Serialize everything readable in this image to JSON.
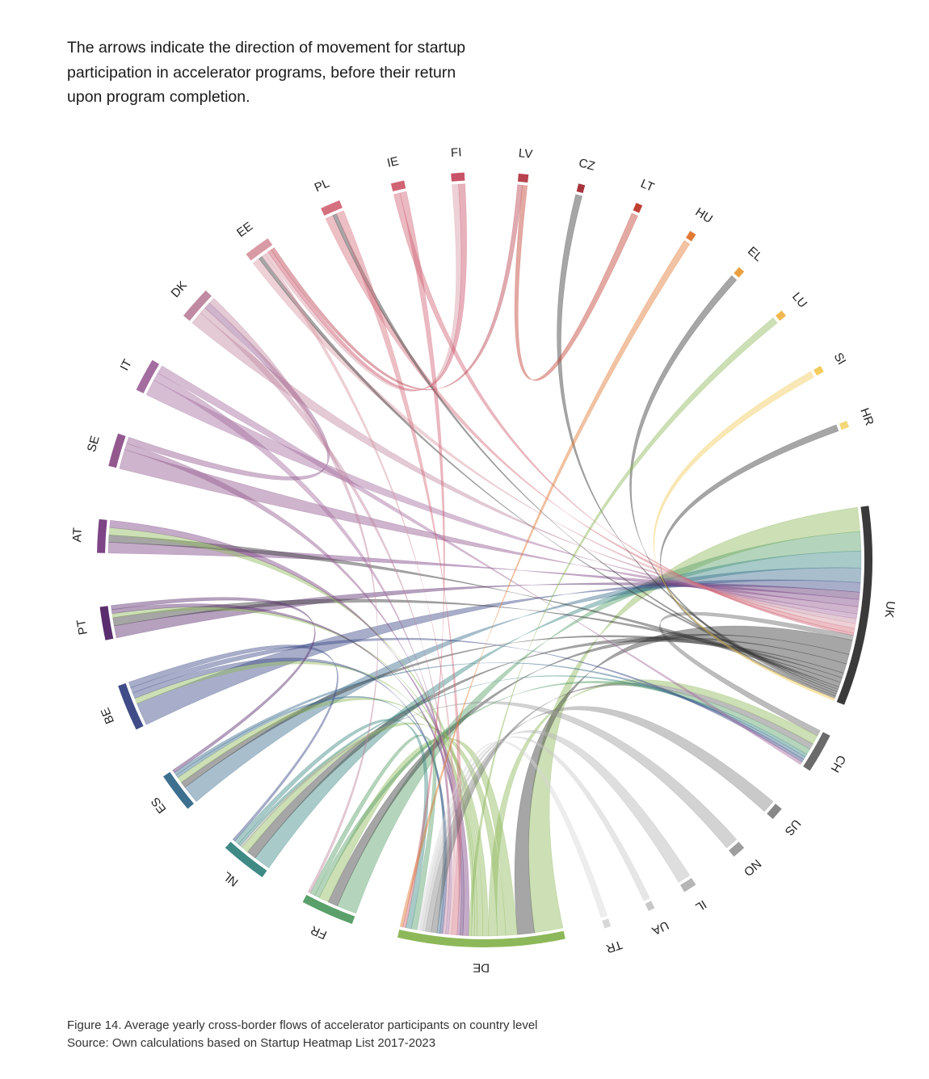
{
  "intro_text": "The arrows indicate the direction of movement for startup participation in accelerator programs, before their return upon program completion.",
  "caption": {
    "figure": "Figure 14. Average yearly cross-border flows of accelerator participants on country level",
    "source": "Source: Own calculations based on Startup Heatmap List 2017-2023"
  },
  "chart_data": {
    "type": "chord",
    "countries": [
      {
        "code": "UK",
        "color": "#3a3a3a"
      },
      {
        "code": "CH",
        "color": "#6b6b6b"
      },
      {
        "code": "US",
        "color": "#888888"
      },
      {
        "code": "NO",
        "color": "#9e9e9e"
      },
      {
        "code": "IL",
        "color": "#b5b5b5"
      },
      {
        "code": "UA",
        "color": "#c8c8c8"
      },
      {
        "code": "TR",
        "color": "#d8d8d8"
      },
      {
        "code": "DE",
        "color": "#8db85a"
      },
      {
        "code": "FR",
        "color": "#5aa06a"
      },
      {
        "code": "NL",
        "color": "#3f8a85"
      },
      {
        "code": "ES",
        "color": "#3d6f8e"
      },
      {
        "code": "BE",
        "color": "#3f4c87"
      },
      {
        "code": "PT",
        "color": "#5a2e6e"
      },
      {
        "code": "AT",
        "color": "#7d4486"
      },
      {
        "code": "SE",
        "color": "#93598f"
      },
      {
        "code": "IT",
        "color": "#a36d9f"
      },
      {
        "code": "DK",
        "color": "#c08aa2"
      },
      {
        "code": "EE",
        "color": "#d89aa4"
      },
      {
        "code": "PL",
        "color": "#d5707f"
      },
      {
        "code": "IE",
        "color": "#d06475"
      },
      {
        "code": "FI",
        "color": "#c95368"
      },
      {
        "code": "LV",
        "color": "#b8424f"
      },
      {
        "code": "CZ",
        "color": "#a8353d"
      },
      {
        "code": "LT",
        "color": "#c04032"
      },
      {
        "code": "HU",
        "color": "#e07a35"
      },
      {
        "code": "EL",
        "color": "#eba040"
      },
      {
        "code": "LU",
        "color": "#f0b84e"
      },
      {
        "code": "SI",
        "color": "#f2cc5c"
      },
      {
        "code": "HR",
        "color": "#f4d77a"
      }
    ],
    "flows": [
      {
        "from": "DE",
        "to": "UK",
        "weight": 10
      },
      {
        "from": "FR",
        "to": "UK",
        "weight": 8
      },
      {
        "from": "NL",
        "to": "UK",
        "weight": 7
      },
      {
        "from": "ES",
        "to": "UK",
        "weight": 6
      },
      {
        "from": "BE",
        "to": "UK",
        "weight": 4
      },
      {
        "from": "PT",
        "to": "UK",
        "weight": 3
      },
      {
        "from": "AT",
        "to": "UK",
        "weight": 3
      },
      {
        "from": "SE",
        "to": "UK",
        "weight": 3
      },
      {
        "from": "IT",
        "to": "UK",
        "weight": 2
      },
      {
        "from": "DK",
        "to": "UK",
        "weight": 2
      },
      {
        "from": "EE",
        "to": "UK",
        "weight": 2
      },
      {
        "from": "PL",
        "to": "UK",
        "weight": 2
      },
      {
        "from": "IE",
        "to": "UK",
        "weight": 1
      },
      {
        "from": "CH",
        "to": "UK",
        "weight": 2
      },
      {
        "from": "UK",
        "to": "DE",
        "weight": 6
      },
      {
        "from": "UK",
        "to": "FR",
        "weight": 4
      },
      {
        "from": "UK",
        "to": "NL",
        "weight": 4
      },
      {
        "from": "UK",
        "to": "ES",
        "weight": 2
      },
      {
        "from": "UK",
        "to": "PT",
        "weight": 2
      },
      {
        "from": "UK",
        "to": "AT",
        "weight": 2
      },
      {
        "from": "UK",
        "to": "EE",
        "weight": 1
      },
      {
        "from": "UK",
        "to": "PL",
        "weight": 1
      },
      {
        "from": "UK",
        "to": "CZ",
        "weight": 1
      },
      {
        "from": "UK",
        "to": "EL",
        "weight": 1
      },
      {
        "from": "UK",
        "to": "HR",
        "weight": 1
      },
      {
        "from": "DE",
        "to": "FR",
        "weight": 4
      },
      {
        "from": "DE",
        "to": "NL",
        "weight": 3
      },
      {
        "from": "DE",
        "to": "CH",
        "weight": 3
      },
      {
        "from": "DE",
        "to": "ES",
        "weight": 2
      },
      {
        "from": "DE",
        "to": "AT",
        "weight": 2
      },
      {
        "from": "DE",
        "to": "PT",
        "weight": 1
      },
      {
        "from": "DE",
        "to": "BE",
        "weight": 1
      },
      {
        "from": "DE",
        "to": "LU",
        "weight": 1
      },
      {
        "from": "AT",
        "to": "DE",
        "weight": 2
      },
      {
        "from": "PT",
        "to": "DE",
        "weight": 1
      },
      {
        "from": "SE",
        "to": "DE",
        "weight": 1
      },
      {
        "from": "PL",
        "to": "DE",
        "weight": 2
      },
      {
        "from": "EE",
        "to": "DE",
        "weight": 1
      },
      {
        "from": "IT",
        "to": "DE",
        "weight": 1
      },
      {
        "from": "DK",
        "to": "DE",
        "weight": 1
      },
      {
        "from": "BE",
        "to": "DE",
        "weight": 1
      },
      {
        "from": "ES",
        "to": "DE",
        "weight": 1
      },
      {
        "from": "CH",
        "to": "DE",
        "weight": 2
      },
      {
        "from": "US",
        "to": "DE",
        "weight": 2
      },
      {
        "from": "NO",
        "to": "NL",
        "weight": 1
      },
      {
        "from": "IL",
        "to": "DE",
        "weight": 1
      },
      {
        "from": "UA",
        "to": "DE",
        "weight": 1
      },
      {
        "from": "TR",
        "to": "DE",
        "weight": 1
      },
      {
        "from": "FR",
        "to": "CH",
        "weight": 2
      },
      {
        "from": "FR",
        "to": "DE",
        "weight": 2
      },
      {
        "from": "NL",
        "to": "CH",
        "weight": 1
      },
      {
        "from": "NL",
        "to": "DE",
        "weight": 2
      },
      {
        "from": "ES",
        "to": "CH",
        "weight": 1
      },
      {
        "from": "BE",
        "to": "CH",
        "weight": 1
      },
      {
        "from": "BE",
        "to": "NL",
        "weight": 1
      },
      {
        "from": "PT",
        "to": "ES",
        "weight": 1
      },
      {
        "from": "SE",
        "to": "DK",
        "weight": 1
      },
      {
        "from": "IT",
        "to": "CH",
        "weight": 1
      },
      {
        "from": "DK",
        "to": "FR",
        "weight": 1
      },
      {
        "from": "EE",
        "to": "FI",
        "weight": 1
      },
      {
        "from": "IE",
        "to": "DE",
        "weight": 1
      },
      {
        "from": "FI",
        "to": "EE",
        "weight": 1
      },
      {
        "from": "LV",
        "to": "EE",
        "weight": 1
      },
      {
        "from": "LT",
        "to": "LV",
        "weight": 1
      },
      {
        "from": "HU",
        "to": "DE",
        "weight": 1
      },
      {
        "from": "SI",
        "to": "UK",
        "weight": 1
      }
    ]
  }
}
